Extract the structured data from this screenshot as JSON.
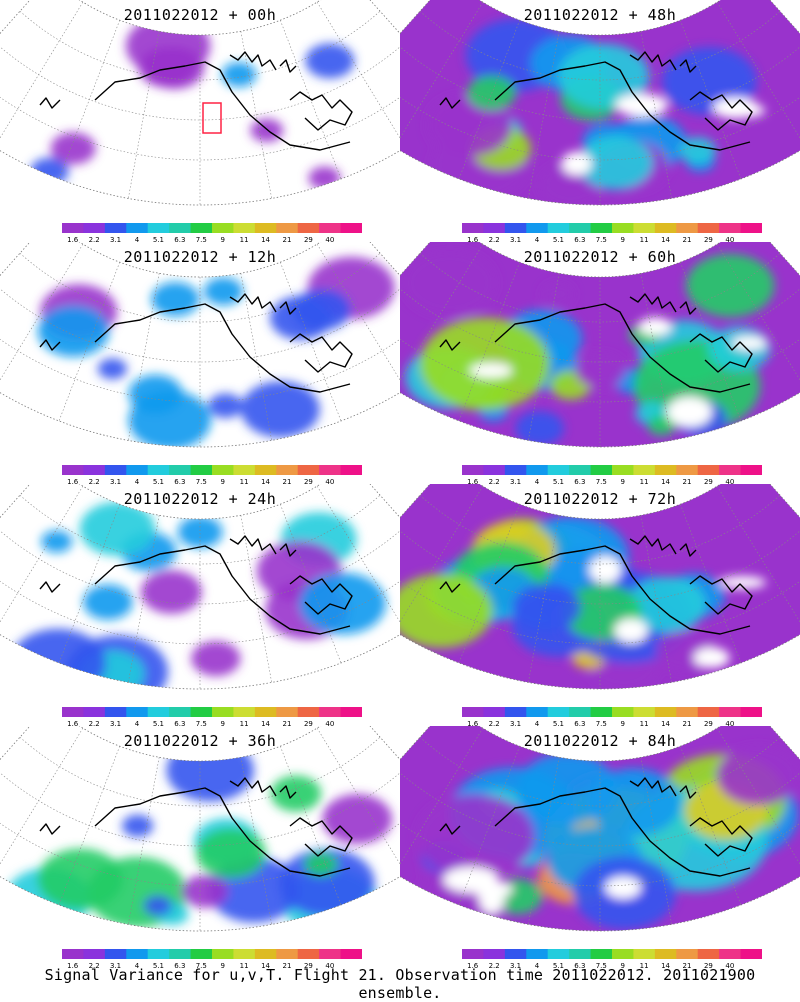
{
  "panels": [
    {
      "title": "2011022012 + 00h",
      "intensity": 0.15,
      "marker": true
    },
    {
      "title": "2011022012 + 48h",
      "intensity": 0.55,
      "marker": false
    },
    {
      "title": "2011022012 + 12h",
      "intensity": 0.25,
      "marker": false
    },
    {
      "title": "2011022012 + 60h",
      "intensity": 0.65,
      "marker": false
    },
    {
      "title": "2011022012 + 24h",
      "intensity": 0.35,
      "marker": false
    },
    {
      "title": "2011022012 + 72h",
      "intensity": 0.75,
      "marker": false
    },
    {
      "title": "2011022012 + 36h",
      "intensity": 0.45,
      "marker": false
    },
    {
      "title": "2011022012 + 84h",
      "intensity": 0.85,
      "marker": false
    }
  ],
  "colorbar": {
    "labels": [
      "1.6",
      "2.2",
      "3.1",
      "4",
      "5.1",
      "6.3",
      "7.5",
      "9",
      "11",
      "14",
      "21",
      "29",
      "40"
    ],
    "colors": [
      "#9933cc",
      "#8a33dd",
      "#3355ee",
      "#1199ee",
      "#22ccdd",
      "#22ccaa",
      "#22cc44",
      "#99dd22",
      "#ccdd33",
      "#ddbb22",
      "#ee9944",
      "#ee6644",
      "#ee3388",
      "#ee1188"
    ]
  },
  "caption": "Signal Variance for u,v,T. Flight 21. Observation time 2011022012. 2011021900 ensemble."
}
